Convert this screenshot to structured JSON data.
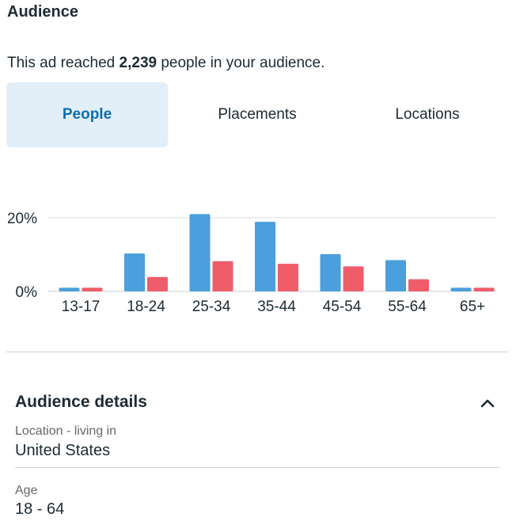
{
  "section_title": "Audience",
  "summary": {
    "prefix": "This ad reached ",
    "count": "2,239",
    "suffix": " people in your audience."
  },
  "tabs": [
    {
      "label": "People",
      "active": true
    },
    {
      "label": "Placements",
      "active": false
    },
    {
      "label": "Locations",
      "active": false
    }
  ],
  "colors": {
    "series_a": "#4a9fdc",
    "series_b": "#ef5d6b",
    "active_tab_bg": "#e2eef8",
    "active_tab_text": "#0b6fb3"
  },
  "chart_data": {
    "type": "bar",
    "categories": [
      "13-17",
      "18-24",
      "25-34",
      "35-44",
      "45-54",
      "55-64",
      "65+"
    ],
    "series": [
      {
        "values": [
          1.0,
          10.3,
          21.0,
          18.9,
          10.1,
          8.5,
          1.0
        ]
      },
      {
        "values": [
          1.0,
          3.9,
          8.2,
          7.5,
          6.8,
          3.3,
          1.0
        ]
      }
    ],
    "y_ticks": [
      {
        "value": 0,
        "label": "0%"
      },
      {
        "value": 20,
        "label": "20%"
      }
    ],
    "ylim": [
      0,
      20
    ],
    "grid": true,
    "title": "",
    "xlabel": "",
    "ylabel": ""
  },
  "details": {
    "title": "Audience details",
    "chevron_icon": "chevron-up-icon",
    "location_label": "Location - living in",
    "location_value": "United States",
    "age_label": "Age",
    "age_value": "18 - 64"
  }
}
